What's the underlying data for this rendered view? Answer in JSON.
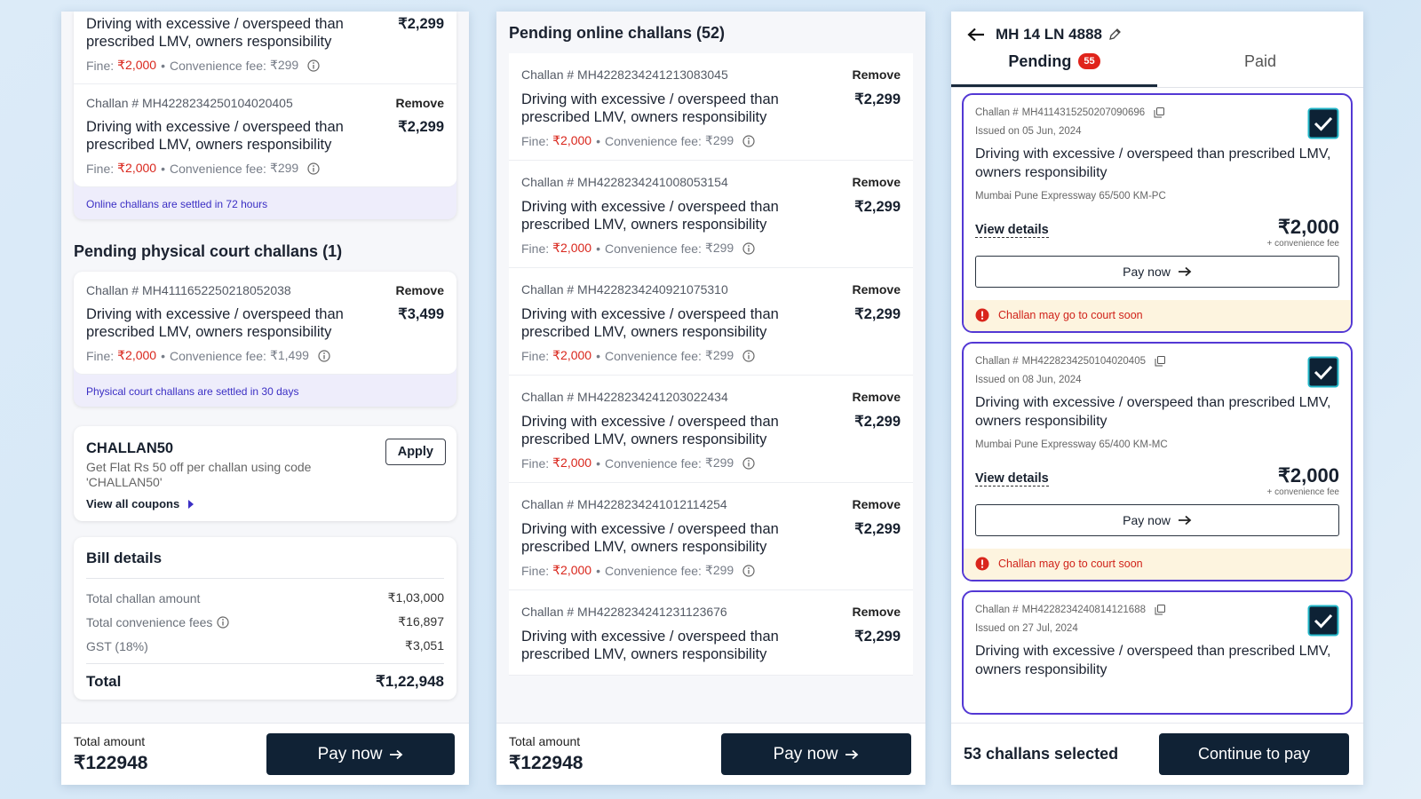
{
  "labels": {
    "challan": "Challan #",
    "remove": "Remove",
    "fine": "Fine:",
    "sep": "•",
    "fee": "Convenience fee:",
    "pay_now": "Pay now",
    "total_amount": "Total amount"
  },
  "screen_1": {
    "online_challans": [
      {
        "title": "Driving with excessive / overspeed than prescribed LMV, owners responsibility",
        "amount": "₹2,299",
        "fine": "₹2,000",
        "fee": "₹299"
      },
      {
        "number": "MH4228234250104020405",
        "title": "Driving with excessive / overspeed than prescribed LMV, owners responsibility",
        "amount": "₹2,299",
        "fine": "₹2,000",
        "fee": "₹299"
      }
    ],
    "online_note": "Online challans are settled in 72 hours",
    "court_heading": "Pending physical court challans (1)",
    "court_challans": [
      {
        "number": "MH4111652250218052038",
        "title": "Driving with excessive / overspeed than prescribed LMV, owners responsibility",
        "amount": "₹3,499",
        "fine": "₹2,000",
        "fee": "₹1,499"
      }
    ],
    "court_note": "Physical court challans are settled in 30 days",
    "coupon": {
      "code": "CHALLAN50",
      "button": "Apply",
      "description": "Get Flat Rs 50 off per challan using code 'CHALLAN50'",
      "link": "View all coupons"
    },
    "bill": {
      "title": "Bill details",
      "rows": [
        {
          "label": "Total challan amount",
          "value": "₹1,03,000"
        },
        {
          "label": "Total convenience fees",
          "value": "₹16,897",
          "info": true
        },
        {
          "label": "GST (18%)",
          "value": "₹3,051"
        }
      ],
      "total": {
        "label": "Total",
        "value": "₹1,22,948"
      }
    },
    "footer": {
      "amount": "₹122948"
    }
  },
  "screen_2": {
    "heading": "Pending online challans (52)",
    "challans": [
      {
        "number": "MH4228234241213083045",
        "title": "Driving with excessive / overspeed than prescribed LMV, owners responsibility",
        "amount": "₹2,299",
        "fine": "₹2,000",
        "fee": "₹299"
      },
      {
        "number": "MH4228234241008053154",
        "title": "Driving with excessive / overspeed than prescribed LMV, owners responsibility",
        "amount": "₹2,299",
        "fine": "₹2,000",
        "fee": "₹299"
      },
      {
        "number": "MH4228234240921075310",
        "title": "Driving with excessive / overspeed than prescribed LMV, owners responsibility",
        "amount": "₹2,299",
        "fine": "₹2,000",
        "fee": "₹299"
      },
      {
        "number": "MH4228234241203022434",
        "title": "Driving with excessive / overspeed than prescribed LMV, owners responsibility",
        "amount": "₹2,299",
        "fine": "₹2,000",
        "fee": "₹299"
      },
      {
        "number": "MH4228234241012114254",
        "title": "Driving with excessive / overspeed than prescribed LMV, owners responsibility",
        "amount": "₹2,299",
        "fine": "₹2,000",
        "fee": "₹299"
      },
      {
        "number": "MH4228234241231123676",
        "title": "Driving with excessive / overspeed than prescribed LMV, owners responsibility",
        "amount": "₹2,299"
      }
    ],
    "footer": {
      "amount": "₹122948"
    }
  },
  "screen_3": {
    "plate": "MH 14 LN 4888",
    "tabs": {
      "pending": "Pending",
      "count": "55",
      "paid": "Paid"
    },
    "view_details": "View details",
    "convenience_note": "+ convenience fee",
    "warning": "Challan may go to court soon",
    "challans": [
      {
        "number": "MH4114315250207090696",
        "issued": "Issued on 05 Jun, 2024",
        "title": "Driving with excessive / overspeed than prescribed LMV, owners responsibility",
        "location": "Mumbai Pune Expressway 65/500 KM-PC",
        "amount": "₹2,000"
      },
      {
        "number": "MH4228234250104020405",
        "issued": "Issued on 08 Jun, 2024",
        "title": "Driving with excessive / overspeed than prescribed LMV, owners responsibility",
        "location": "Mumbai Pune Expressway 65/400 KM-MC",
        "amount": "₹2,000"
      },
      {
        "number": "MH4228234240814121688",
        "issued": "Issued on 27 Jul, 2024",
        "title": "Driving with excessive / overspeed than prescribed LMV, owners responsibility"
      }
    ],
    "footer": {
      "selected": "53 challans selected",
      "button": "Continue to pay"
    }
  }
}
